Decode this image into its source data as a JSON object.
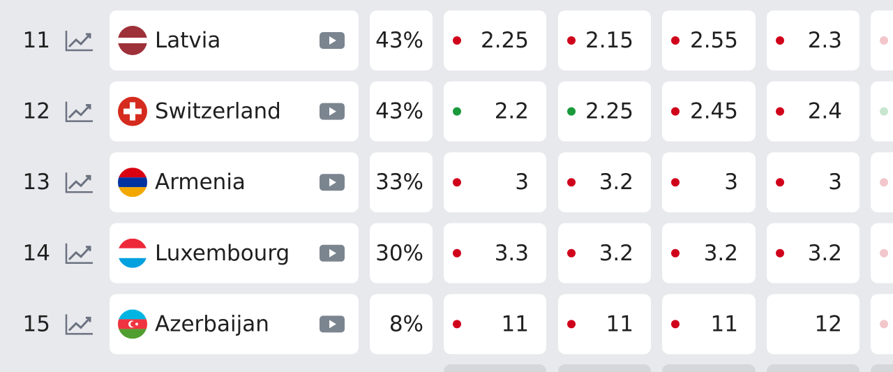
{
  "rows": [
    {
      "rank": "11",
      "country": "Latvia",
      "percent": "43%",
      "odds": [
        "2.25",
        "2.15",
        "2.55",
        "2.3"
      ],
      "dots": [
        "#d0021b",
        "#d0021b",
        "#d0021b",
        "#d0021b",
        "#f2c6ca"
      ]
    },
    {
      "rank": "12",
      "country": "Switzerland",
      "percent": "43%",
      "odds": [
        "2.2",
        "2.25",
        "2.45",
        "2.4"
      ],
      "dots": [
        "#1a9a3a",
        "#1a9a3a",
        "#d0021b",
        "#d0021b",
        "#c8e6cf"
      ]
    },
    {
      "rank": "13",
      "country": "Armenia",
      "percent": "33%",
      "odds": [
        "3",
        "3.2",
        "3",
        "3"
      ],
      "dots": [
        "#d0021b",
        "#d0021b",
        "#d0021b",
        "#d0021b",
        "#f2c6ca"
      ]
    },
    {
      "rank": "14",
      "country": "Luxembourg",
      "percent": "30%",
      "odds": [
        "3.3",
        "3.2",
        "3.2",
        "3.2"
      ],
      "dots": [
        "#d0021b",
        "#d0021b",
        "#d0021b",
        "#d0021b",
        "#f2c6ca"
      ]
    },
    {
      "rank": "15",
      "country": "Azerbaijan",
      "percent": "8%",
      "odds": [
        "11",
        "11",
        "11",
        "12"
      ],
      "dots": [
        "#d0021b",
        "#d0021b",
        "#d0021b",
        null,
        "#f2c6ca"
      ]
    }
  ]
}
